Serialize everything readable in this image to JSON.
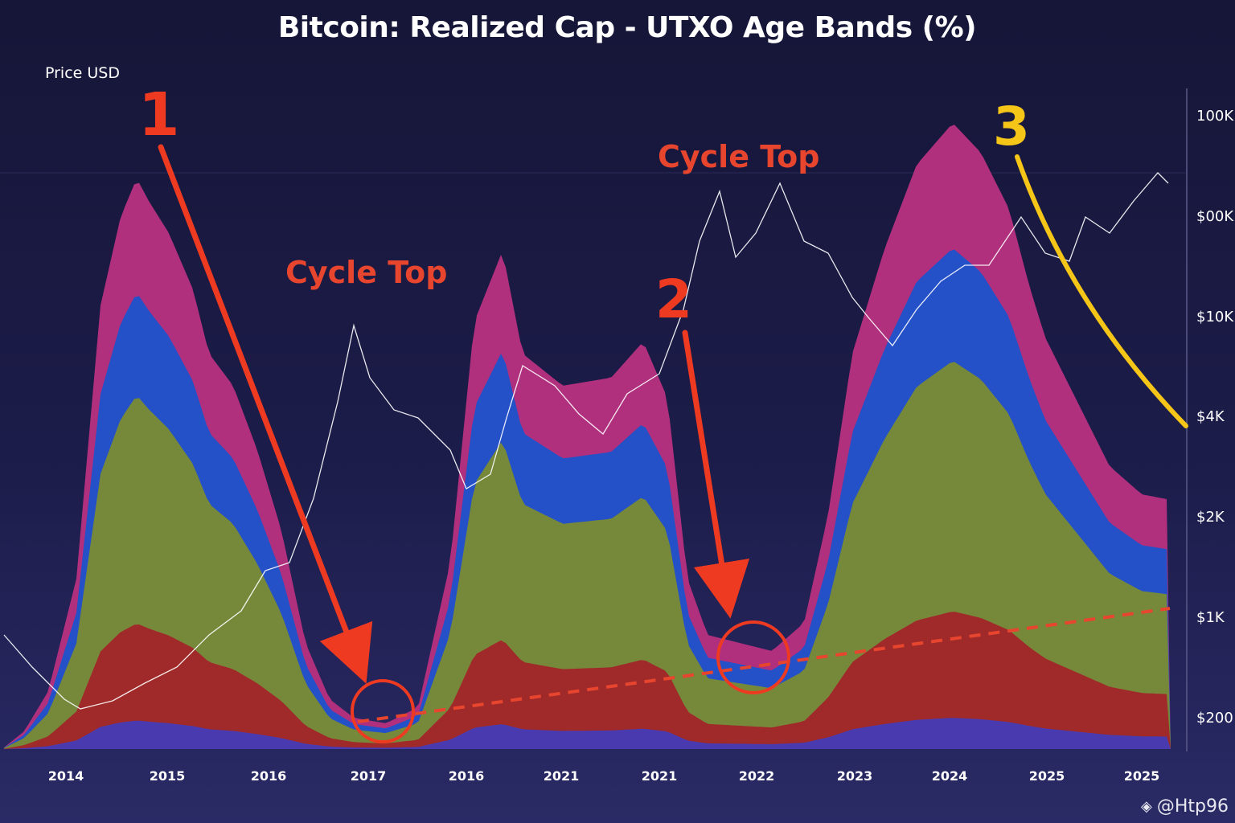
{
  "chart_data": {
    "type": "area",
    "title": "Bitcoin: Realized Cap - UTXO Age Bands (%)",
    "ylabel": "Price USD",
    "y_ticks": [
      "100K",
      "$00K",
      "$10K",
      "$4K",
      "$2K",
      "$1K",
      "$200"
    ],
    "x_ticks": [
      "2014",
      "2015",
      "2016",
      "2017",
      "2016",
      "2021",
      "2021",
      "2022",
      "2023",
      "2024",
      "2025",
      "2025"
    ],
    "bands": [
      {
        "color": "#b0307e",
        "level": 1.0
      },
      {
        "color": "#2450c8",
        "level": 0.8
      },
      {
        "color": "#76893a",
        "level": 0.62
      },
      {
        "color": "#a02a2a",
        "level": 0.22
      },
      {
        "color": "#4a3ab0",
        "level": 0.05
      }
    ],
    "annotations": {
      "one": "1",
      "two": "2",
      "three": "3",
      "cycle_top_left": "Cycle Top",
      "cycle_top_right": "Cycle Top"
    },
    "colors": {
      "arrow": "#ef3a22",
      "curve_three": "#f5c518",
      "trend": "#e8452e",
      "price_line": "#ffffff"
    }
  },
  "watermark": "@Htp96"
}
